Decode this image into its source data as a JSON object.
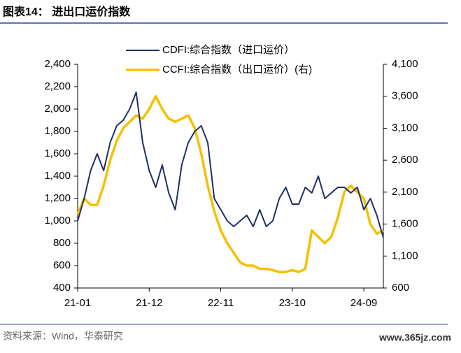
{
  "chart_data": {
    "type": "line",
    "title": "图表14： 进出口运价指数",
    "source": "资料来源：Wind，华泰研究",
    "watermark": "www.365jz.com",
    "categories": [
      "21-01",
      null,
      null,
      null,
      null,
      null,
      null,
      null,
      null,
      null,
      null,
      "21-12",
      null,
      null,
      null,
      null,
      null,
      null,
      null,
      null,
      null,
      null,
      "22-11",
      null,
      null,
      null,
      null,
      null,
      null,
      null,
      null,
      null,
      null,
      "23-10",
      null,
      null,
      null,
      null,
      null,
      null,
      null,
      null,
      null,
      null,
      "24-09",
      null,
      null,
      null
    ],
    "series": [
      {
        "name": "CDFI:综合指数（进口运价）",
        "color": "#1f3068",
        "axis": "y",
        "values": [
          1000,
          1200,
          1450,
          1600,
          1450,
          1700,
          1850,
          1900,
          2000,
          2150,
          1700,
          1450,
          1300,
          1500,
          1250,
          1100,
          1500,
          1700,
          1800,
          1850,
          1700,
          1200,
          1100,
          1000,
          950,
          1000,
          1050,
          950,
          1100,
          950,
          1000,
          1200,
          1300,
          1150,
          1150,
          1300,
          1250,
          1400,
          1200,
          1250,
          1300,
          1300,
          1250,
          1300,
          1100,
          1200,
          1050,
          850
        ]
      },
      {
        "name": "CCFI:综合指数（出口运价）(右)",
        "color": "#f5c000",
        "axis": "y2",
        "values": [
          1750,
          2000,
          1900,
          1900,
          2200,
          2600,
          2900,
          3100,
          3200,
          3300,
          3250,
          3400,
          3600,
          3400,
          3250,
          3200,
          3250,
          3300,
          3100,
          2700,
          2200,
          1800,
          1500,
          1300,
          1150,
          1000,
          950,
          950,
          900,
          900,
          880,
          850,
          850,
          880,
          850,
          900,
          1500,
          1400,
          1300,
          1400,
          1700,
          2100,
          2200,
          2100,
          2000,
          1600,
          1450,
          1500
        ]
      }
    ],
    "ylim": [
      400,
      2400
    ],
    "yticks": [
      400,
      600,
      800,
      {
        "value": 1000,
        "label": "1,000"
      },
      {
        "value": 1200,
        "label": "1,200"
      },
      {
        "value": 1400,
        "label": "1,400"
      },
      {
        "value": 1600,
        "label": "1,600"
      },
      {
        "value": 1800,
        "label": "1,800"
      },
      {
        "value": 2000,
        "label": "2,000"
      },
      {
        "value": 2200,
        "label": "2,200"
      },
      {
        "value": 2400,
        "label": "2,400"
      }
    ],
    "y2lim": [
      600,
      4100
    ],
    "y2ticks": [
      600,
      {
        "value": 1100,
        "label": "1,100"
      },
      {
        "value": 1600,
        "label": "1,600"
      },
      {
        "value": 2100,
        "label": "2,100"
      },
      {
        "value": 2600,
        "label": "2,600"
      },
      {
        "value": 3100,
        "label": "3,100"
      },
      {
        "value": 3600,
        "label": "3,600"
      },
      {
        "value": 4100,
        "label": "4,100"
      }
    ],
    "legend": "top"
  }
}
